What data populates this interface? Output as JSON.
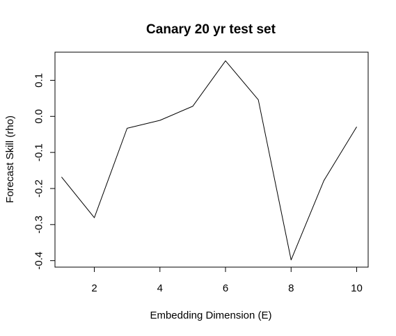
{
  "chart_data": {
    "type": "line",
    "title": "Canary 20 yr test set",
    "xlabel": "Embedding Dimension (E)",
    "ylabel": "Forecast Skill (rho)",
    "x": [
      1,
      2,
      3,
      4,
      5,
      6,
      7,
      8,
      9,
      10
    ],
    "series": [
      {
        "values": [
          -0.168,
          -0.281,
          -0.033,
          -0.011,
          0.028,
          0.154,
          0.046,
          -0.398,
          -0.178,
          -0.029
        ],
        "color": "#000000"
      }
    ],
    "xlim": [
      0.8,
      10.35
    ],
    "ylim": [
      -0.418,
      0.178
    ],
    "xticks": [
      2,
      4,
      6,
      8,
      10
    ],
    "xtick_labels": [
      "2",
      "4",
      "6",
      "8",
      "10"
    ],
    "yticks": [
      -0.4,
      -0.3,
      -0.2,
      -0.1,
      0.0,
      0.1
    ],
    "ytick_labels": [
      "-0.4",
      "-0.3",
      "-0.2",
      "-0.1",
      "0.0",
      "0.1"
    ],
    "grid": false,
    "legend": false
  }
}
